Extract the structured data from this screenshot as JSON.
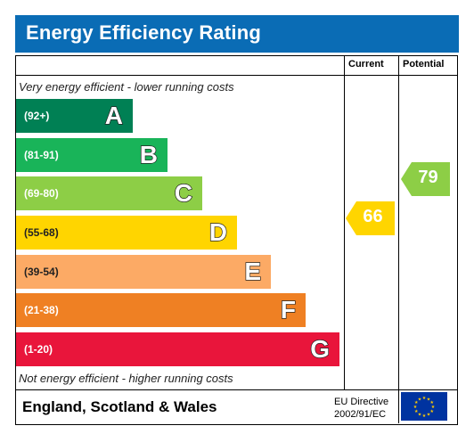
{
  "title": "Energy Efficiency Rating",
  "columns": {
    "current": "Current",
    "potential": "Potential"
  },
  "top_caption": "Very energy efficient - lower running costs",
  "bottom_caption": "Not energy efficient - higher running costs",
  "footer": {
    "region": "England, Scotland & Wales",
    "directive_line1": "EU Directive",
    "directive_line2": "2002/91/EC"
  },
  "colors": {
    "title_bar": "#0a6cb5",
    "A": "#008054",
    "B": "#19b459",
    "C": "#8dce46",
    "D": "#ffd500",
    "E": "#fcaa65",
    "F": "#ef8023",
    "G": "#e9153b",
    "flag": "#0033a0",
    "stars": "#ffcc00"
  },
  "chart_data": {
    "type": "bar",
    "bands": [
      {
        "letter": "A",
        "range": "(92+)"
      },
      {
        "letter": "B",
        "range": "(81-91)"
      },
      {
        "letter": "C",
        "range": "(69-80)"
      },
      {
        "letter": "D",
        "range": "(55-68)"
      },
      {
        "letter": "E",
        "range": "(39-54)"
      },
      {
        "letter": "F",
        "range": "(21-38)"
      },
      {
        "letter": "G",
        "range": "(1-20)"
      }
    ],
    "current": {
      "value": 66,
      "band": "D"
    },
    "potential": {
      "value": 79,
      "band": "C"
    }
  }
}
